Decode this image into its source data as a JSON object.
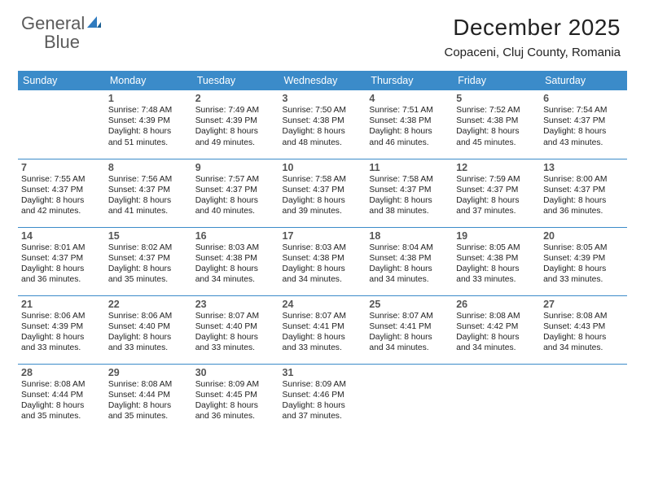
{
  "logo": {
    "word1": "General",
    "word2": "Blue"
  },
  "title": "December 2025",
  "location": "Copaceni, Cluj County, Romania",
  "colors": {
    "header_bg": "#3b8bc9",
    "header_text": "#ffffff",
    "rule": "#3b8bc9",
    "logo_gray": "#5b5b5b",
    "logo_blue": "#2f7bbf"
  },
  "dow": [
    "Sunday",
    "Monday",
    "Tuesday",
    "Wednesday",
    "Thursday",
    "Friday",
    "Saturday"
  ],
  "weeks": [
    [
      null,
      {
        "n": "1",
        "sr": "7:48 AM",
        "ss": "4:39 PM",
        "dl": "8 hours and 51 minutes."
      },
      {
        "n": "2",
        "sr": "7:49 AM",
        "ss": "4:39 PM",
        "dl": "8 hours and 49 minutes."
      },
      {
        "n": "3",
        "sr": "7:50 AM",
        "ss": "4:38 PM",
        "dl": "8 hours and 48 minutes."
      },
      {
        "n": "4",
        "sr": "7:51 AM",
        "ss": "4:38 PM",
        "dl": "8 hours and 46 minutes."
      },
      {
        "n": "5",
        "sr": "7:52 AM",
        "ss": "4:38 PM",
        "dl": "8 hours and 45 minutes."
      },
      {
        "n": "6",
        "sr": "7:54 AM",
        "ss": "4:37 PM",
        "dl": "8 hours and 43 minutes."
      }
    ],
    [
      {
        "n": "7",
        "sr": "7:55 AM",
        "ss": "4:37 PM",
        "dl": "8 hours and 42 minutes."
      },
      {
        "n": "8",
        "sr": "7:56 AM",
        "ss": "4:37 PM",
        "dl": "8 hours and 41 minutes."
      },
      {
        "n": "9",
        "sr": "7:57 AM",
        "ss": "4:37 PM",
        "dl": "8 hours and 40 minutes."
      },
      {
        "n": "10",
        "sr": "7:58 AM",
        "ss": "4:37 PM",
        "dl": "8 hours and 39 minutes."
      },
      {
        "n": "11",
        "sr": "7:58 AM",
        "ss": "4:37 PM",
        "dl": "8 hours and 38 minutes."
      },
      {
        "n": "12",
        "sr": "7:59 AM",
        "ss": "4:37 PM",
        "dl": "8 hours and 37 minutes."
      },
      {
        "n": "13",
        "sr": "8:00 AM",
        "ss": "4:37 PM",
        "dl": "8 hours and 36 minutes."
      }
    ],
    [
      {
        "n": "14",
        "sr": "8:01 AM",
        "ss": "4:37 PM",
        "dl": "8 hours and 36 minutes."
      },
      {
        "n": "15",
        "sr": "8:02 AM",
        "ss": "4:37 PM",
        "dl": "8 hours and 35 minutes."
      },
      {
        "n": "16",
        "sr": "8:03 AM",
        "ss": "4:38 PM",
        "dl": "8 hours and 34 minutes."
      },
      {
        "n": "17",
        "sr": "8:03 AM",
        "ss": "4:38 PM",
        "dl": "8 hours and 34 minutes."
      },
      {
        "n": "18",
        "sr": "8:04 AM",
        "ss": "4:38 PM",
        "dl": "8 hours and 34 minutes."
      },
      {
        "n": "19",
        "sr": "8:05 AM",
        "ss": "4:38 PM",
        "dl": "8 hours and 33 minutes."
      },
      {
        "n": "20",
        "sr": "8:05 AM",
        "ss": "4:39 PM",
        "dl": "8 hours and 33 minutes."
      }
    ],
    [
      {
        "n": "21",
        "sr": "8:06 AM",
        "ss": "4:39 PM",
        "dl": "8 hours and 33 minutes."
      },
      {
        "n": "22",
        "sr": "8:06 AM",
        "ss": "4:40 PM",
        "dl": "8 hours and 33 minutes."
      },
      {
        "n": "23",
        "sr": "8:07 AM",
        "ss": "4:40 PM",
        "dl": "8 hours and 33 minutes."
      },
      {
        "n": "24",
        "sr": "8:07 AM",
        "ss": "4:41 PM",
        "dl": "8 hours and 33 minutes."
      },
      {
        "n": "25",
        "sr": "8:07 AM",
        "ss": "4:41 PM",
        "dl": "8 hours and 34 minutes."
      },
      {
        "n": "26",
        "sr": "8:08 AM",
        "ss": "4:42 PM",
        "dl": "8 hours and 34 minutes."
      },
      {
        "n": "27",
        "sr": "8:08 AM",
        "ss": "4:43 PM",
        "dl": "8 hours and 34 minutes."
      }
    ],
    [
      {
        "n": "28",
        "sr": "8:08 AM",
        "ss": "4:44 PM",
        "dl": "8 hours and 35 minutes."
      },
      {
        "n": "29",
        "sr": "8:08 AM",
        "ss": "4:44 PM",
        "dl": "8 hours and 35 minutes."
      },
      {
        "n": "30",
        "sr": "8:09 AM",
        "ss": "4:45 PM",
        "dl": "8 hours and 36 minutes."
      },
      {
        "n": "31",
        "sr": "8:09 AM",
        "ss": "4:46 PM",
        "dl": "8 hours and 37 minutes."
      },
      null,
      null,
      null
    ]
  ],
  "labels": {
    "sunrise": "Sunrise:",
    "sunset": "Sunset:",
    "daylight": "Daylight:"
  }
}
